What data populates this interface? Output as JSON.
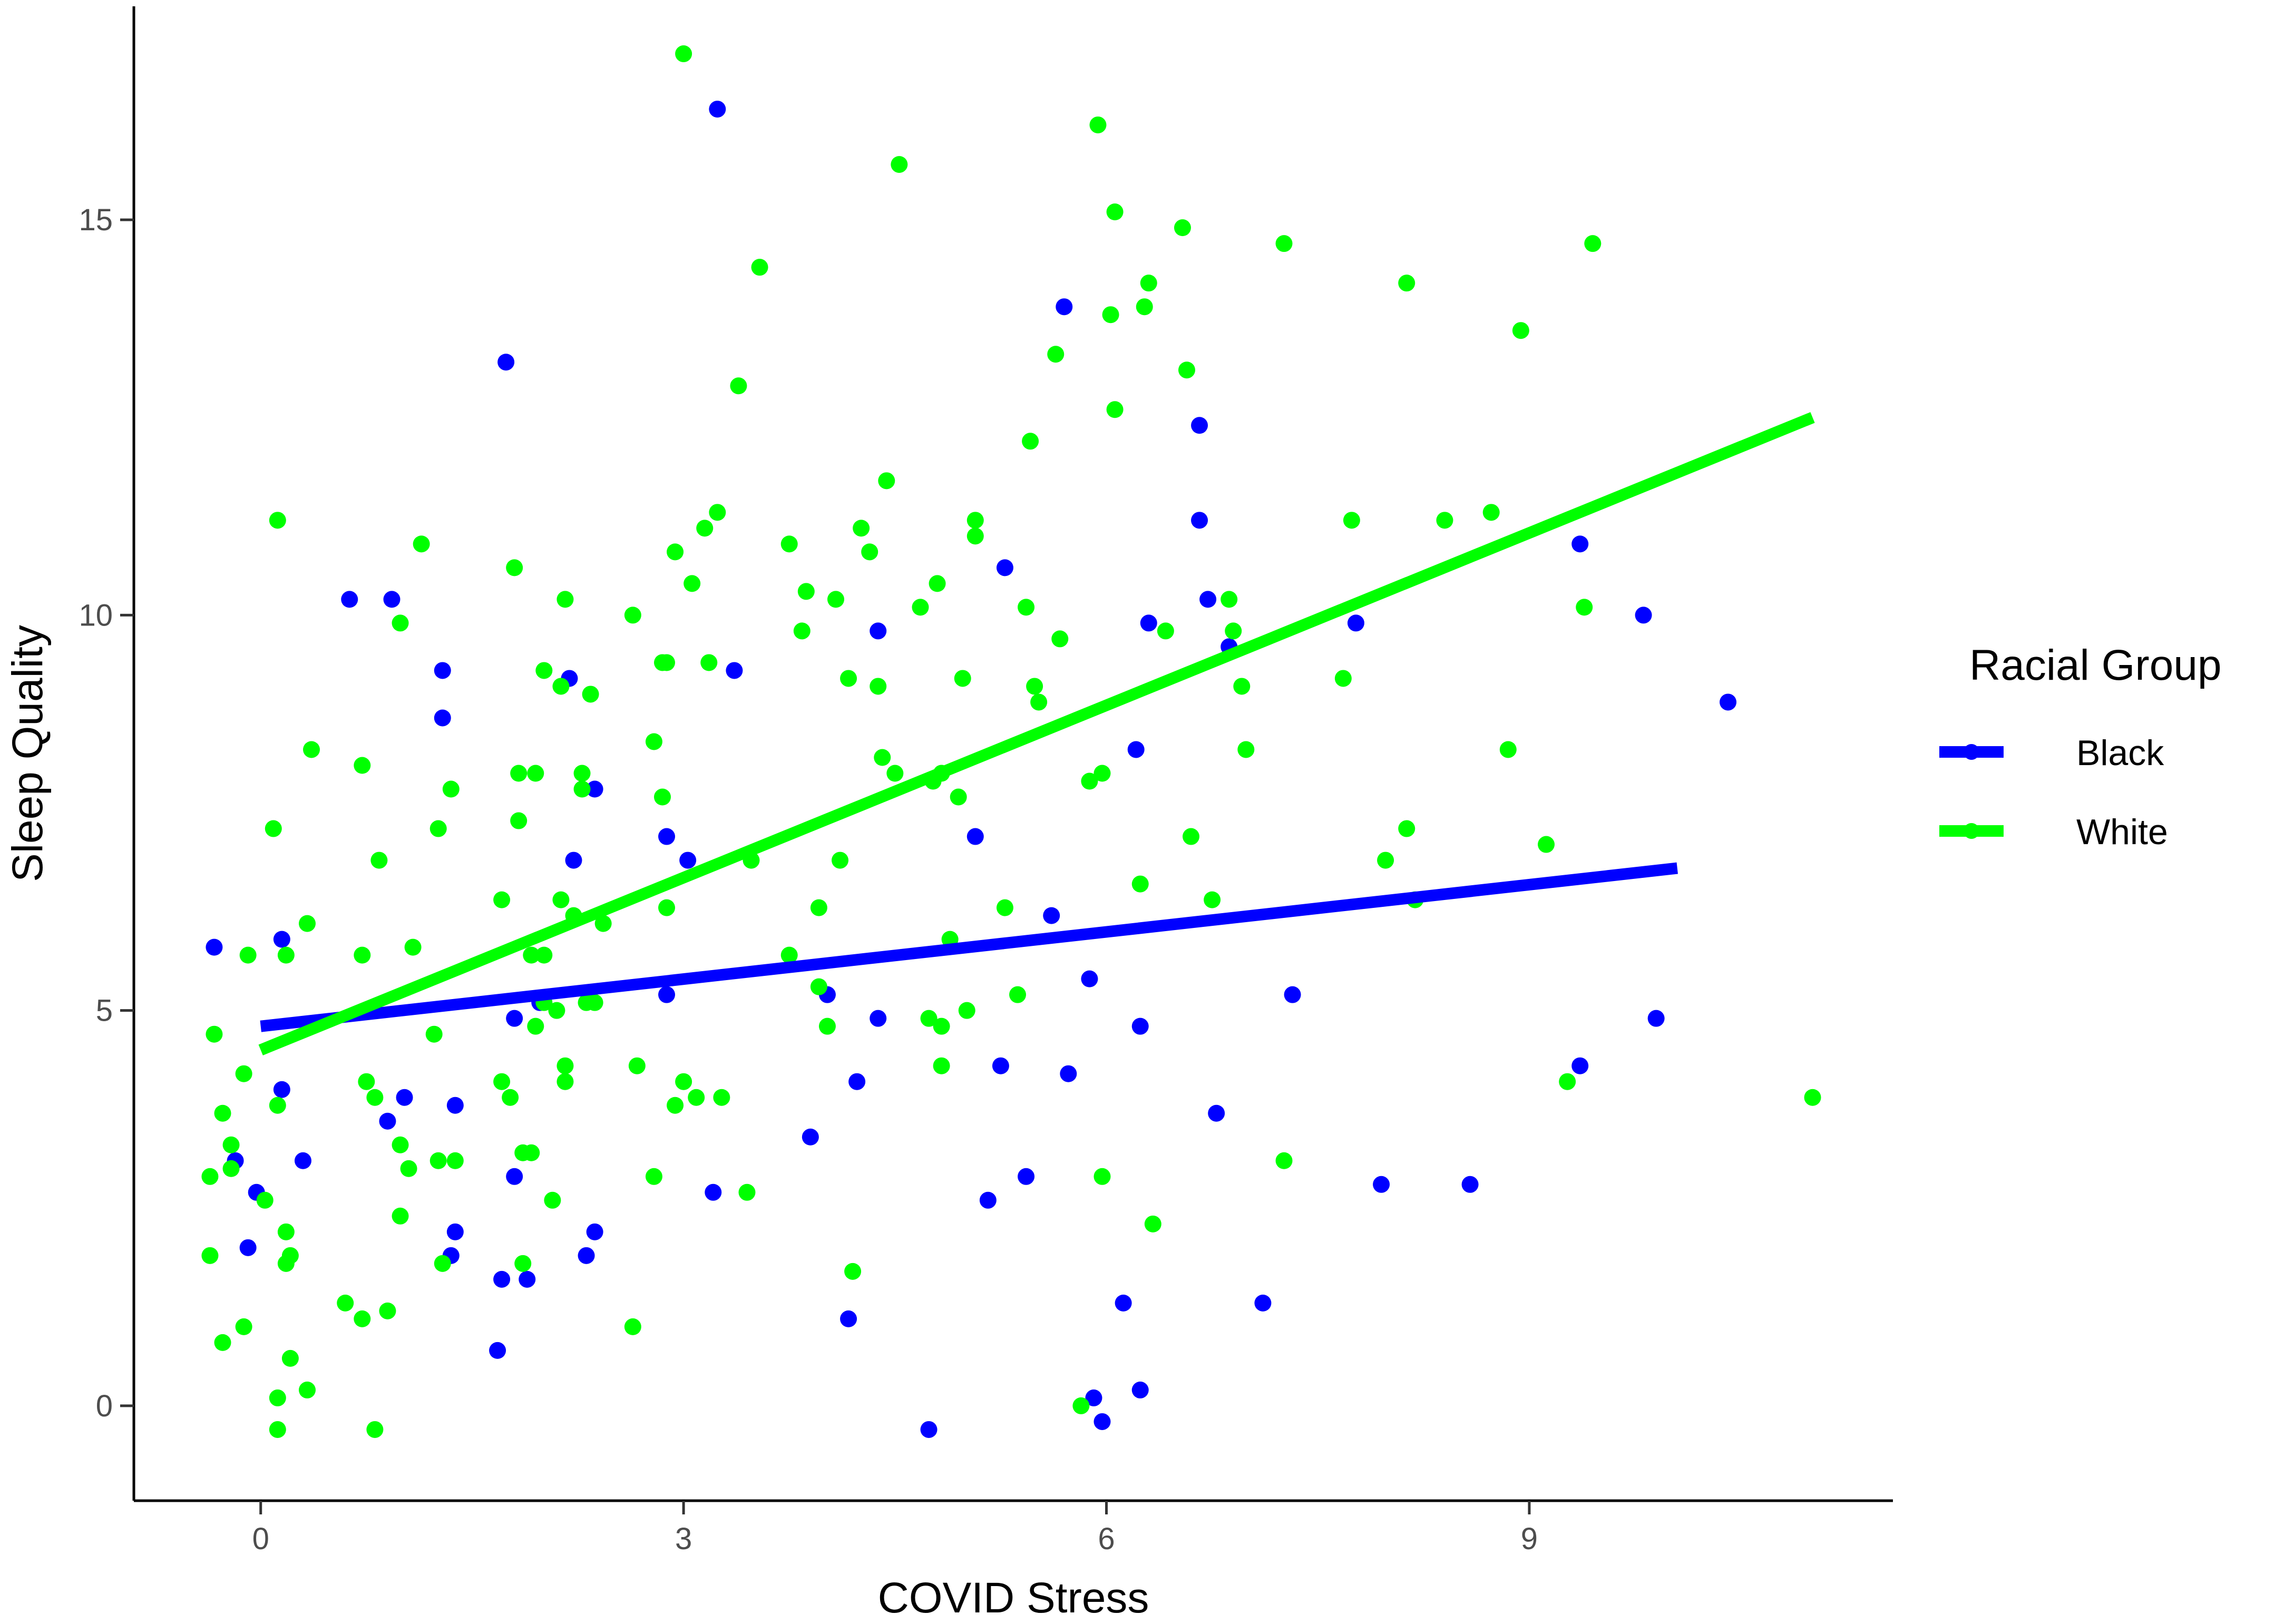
{
  "chart_data": {
    "type": "scatter",
    "xlabel": "COVID Stress",
    "ylabel": "Sleep Quality",
    "xlim": [
      -3,
      38.6
    ],
    "ylim": [
      -1.2,
      17.7
    ],
    "x_ticks": [
      0,
      10,
      20,
      30
    ],
    "x_tick_labels": [
      "0",
      "3",
      "6",
      "9"
    ],
    "y_ticks": [
      0,
      5,
      10,
      15
    ],
    "y_tick_labels": [
      "0",
      "5",
      "10",
      "15"
    ],
    "grid": false,
    "legend": {
      "title": "Racial Group",
      "placement": "right",
      "entries": [
        {
          "label": "Black",
          "color": "#0000ff"
        },
        {
          "label": "White",
          "color": "#00ff00"
        }
      ]
    },
    "series": [
      {
        "name": "Black",
        "color": "#0000ff",
        "fit_line": {
          "x": [
            0,
            33.5
          ],
          "y": [
            4.8,
            6.8
          ]
        },
        "points": [
          [
            -1.1,
            5.8
          ],
          [
            -0.6,
            3.1
          ],
          [
            -0.3,
            2.0
          ],
          [
            -0.1,
            2.7
          ],
          [
            0.5,
            5.9
          ],
          [
            0.5,
            4.0
          ],
          [
            1.0,
            3.1
          ],
          [
            2.1,
            10.2
          ],
          [
            3.1,
            10.2
          ],
          [
            3.0,
            3.6
          ],
          [
            3.4,
            3.9
          ],
          [
            4.3,
            9.3
          ],
          [
            4.3,
            8.7
          ],
          [
            4.5,
            1.9
          ],
          [
            4.6,
            3.8
          ],
          [
            4.6,
            2.2
          ],
          [
            5.8,
            13.2
          ],
          [
            5.7,
            1.6
          ],
          [
            5.6,
            0.7
          ],
          [
            6.0,
            2.9
          ],
          [
            6.0,
            4.9
          ],
          [
            6.3,
            1.6
          ],
          [
            6.6,
            5.1
          ],
          [
            7.3,
            9.2
          ],
          [
            7.4,
            6.9
          ],
          [
            7.7,
            1.9
          ],
          [
            7.9,
            7.8
          ],
          [
            7.9,
            2.2
          ],
          [
            9.6,
            7.2
          ],
          [
            9.6,
            5.2
          ],
          [
            10.1,
            6.9
          ],
          [
            10.7,
            2.7
          ],
          [
            10.8,
            16.4
          ],
          [
            11.2,
            9.3
          ],
          [
            13.0,
            3.4
          ],
          [
            13.4,
            5.2
          ],
          [
            14.1,
            4.1
          ],
          [
            13.9,
            1.1
          ],
          [
            14.6,
            9.8
          ],
          [
            14.6,
            4.9
          ],
          [
            15.8,
            -0.3
          ],
          [
            16.9,
            7.2
          ],
          [
            17.6,
            10.6
          ],
          [
            17.5,
            4.3
          ],
          [
            18.1,
            2.9
          ],
          [
            17.2,
            2.6
          ],
          [
            18.7,
            6.2
          ],
          [
            19.0,
            13.9
          ],
          [
            19.1,
            4.2
          ],
          [
            19.6,
            5.4
          ],
          [
            19.7,
            0.1
          ],
          [
            19.9,
            -0.2
          ],
          [
            20.4,
            1.3
          ],
          [
            20.7,
            8.3
          ],
          [
            20.8,
            4.8
          ],
          [
            20.8,
            0.2
          ],
          [
            21.0,
            9.9
          ],
          [
            22.2,
            12.4
          ],
          [
            22.2,
            11.2
          ],
          [
            22.4,
            10.2
          ],
          [
            22.6,
            3.7
          ],
          [
            22.9,
            9.6
          ],
          [
            23.7,
            1.3
          ],
          [
            24.4,
            5.2
          ],
          [
            25.9,
            9.9
          ],
          [
            26.5,
            2.8
          ],
          [
            28.6,
            2.8
          ],
          [
            31.2,
            10.9
          ],
          [
            31.2,
            4.3
          ],
          [
            32.7,
            10.0
          ],
          [
            33.0,
            4.9
          ],
          [
            34.7,
            8.9
          ]
        ]
      },
      {
        "name": "White",
        "color": "#00ff00",
        "fit_line": {
          "x": [
            0,
            36.7
          ],
          "y": [
            4.5,
            12.5
          ]
        },
        "points": [
          [
            -1.2,
            2.9
          ],
          [
            -1.2,
            1.9
          ],
          [
            -1.1,
            4.7
          ],
          [
            -0.9,
            3.7
          ],
          [
            -0.9,
            0.8
          ],
          [
            -0.7,
            3.3
          ],
          [
            -0.7,
            3.0
          ],
          [
            -0.4,
            1.0
          ],
          [
            -0.4,
            4.2
          ],
          [
            -0.3,
            5.7
          ],
          [
            0.1,
            2.6
          ],
          [
            0.3,
            7.3
          ],
          [
            0.4,
            3.8
          ],
          [
            0.4,
            -0.3
          ],
          [
            0.4,
            0.1
          ],
          [
            0.4,
            11.2
          ],
          [
            0.6,
            1.8
          ],
          [
            0.6,
            5.7
          ],
          [
            0.6,
            2.2
          ],
          [
            0.7,
            1.9
          ],
          [
            0.7,
            0.6
          ],
          [
            1.1,
            6.1
          ],
          [
            1.1,
            0.2
          ],
          [
            1.2,
            8.3
          ],
          [
            2.0,
            1.3
          ],
          [
            2.4,
            8.1
          ],
          [
            2.4,
            5.7
          ],
          [
            2.4,
            1.1
          ],
          [
            2.5,
            4.1
          ],
          [
            2.7,
            3.9
          ],
          [
            2.7,
            -0.3
          ],
          [
            2.8,
            6.9
          ],
          [
            3.0,
            1.2
          ],
          [
            3.3,
            9.9
          ],
          [
            3.3,
            2.4
          ],
          [
            3.3,
            3.3
          ],
          [
            3.5,
            3.0
          ],
          [
            3.6,
            5.8
          ],
          [
            3.8,
            10.9
          ],
          [
            4.1,
            4.7
          ],
          [
            4.2,
            7.3
          ],
          [
            4.2,
            3.1
          ],
          [
            4.3,
            1.8
          ],
          [
            4.5,
            7.8
          ],
          [
            4.6,
            3.1
          ],
          [
            5.7,
            6.4
          ],
          [
            5.7,
            4.1
          ],
          [
            5.9,
            3.9
          ],
          [
            6.0,
            10.6
          ],
          [
            6.1,
            7.4
          ],
          [
            6.1,
            8.0
          ],
          [
            6.2,
            3.2
          ],
          [
            6.2,
            1.8
          ],
          [
            6.4,
            5.7
          ],
          [
            6.4,
            3.2
          ],
          [
            6.5,
            8.0
          ],
          [
            6.5,
            4.8
          ],
          [
            6.7,
            5.7
          ],
          [
            6.7,
            9.3
          ],
          [
            6.7,
            5.1
          ],
          [
            6.9,
            2.6
          ],
          [
            7.0,
            5.0
          ],
          [
            7.1,
            9.1
          ],
          [
            7.1,
            6.4
          ],
          [
            7.2,
            10.2
          ],
          [
            7.2,
            4.3
          ],
          [
            7.2,
            4.1
          ],
          [
            7.4,
            6.2
          ],
          [
            7.6,
            8.0
          ],
          [
            7.6,
            7.8
          ],
          [
            7.7,
            5.1
          ],
          [
            7.8,
            9.0
          ],
          [
            7.9,
            5.1
          ],
          [
            8.1,
            6.1
          ],
          [
            8.8,
            10.0
          ],
          [
            8.8,
            1.0
          ],
          [
            8.9,
            4.3
          ],
          [
            9.3,
            8.4
          ],
          [
            9.3,
            2.9
          ],
          [
            9.5,
            7.7
          ],
          [
            9.5,
            9.4
          ],
          [
            9.6,
            6.3
          ],
          [
            9.6,
            9.4
          ],
          [
            9.8,
            3.8
          ],
          [
            9.8,
            10.8
          ],
          [
            10.0,
            17.1
          ],
          [
            10.0,
            4.1
          ],
          [
            10.2,
            10.4
          ],
          [
            10.3,
            3.9
          ],
          [
            10.5,
            11.1
          ],
          [
            10.6,
            9.4
          ],
          [
            10.8,
            11.3
          ],
          [
            10.9,
            3.9
          ],
          [
            11.3,
            12.9
          ],
          [
            11.5,
            2.7
          ],
          [
            11.6,
            6.9
          ],
          [
            11.8,
            14.4
          ],
          [
            12.5,
            10.9
          ],
          [
            12.5,
            5.7
          ],
          [
            12.8,
            9.8
          ],
          [
            12.9,
            10.3
          ],
          [
            13.2,
            6.3
          ],
          [
            13.2,
            5.3
          ],
          [
            13.4,
            4.8
          ],
          [
            13.7,
            6.9
          ],
          [
            13.6,
            10.2
          ],
          [
            13.9,
            9.2
          ],
          [
            14.0,
            1.7
          ],
          [
            14.2,
            11.1
          ],
          [
            14.4,
            10.8
          ],
          [
            14.6,
            9.1
          ],
          [
            14.7,
            8.2
          ],
          [
            14.8,
            11.7
          ],
          [
            15.0,
            8.0
          ],
          [
            15.1,
            15.7
          ],
          [
            15.6,
            10.1
          ],
          [
            15.8,
            4.9
          ],
          [
            15.9,
            7.9
          ],
          [
            16.0,
            10.4
          ],
          [
            16.1,
            4.8
          ],
          [
            16.1,
            8.0
          ],
          [
            16.1,
            4.3
          ],
          [
            16.3,
            5.9
          ],
          [
            16.5,
            7.7
          ],
          [
            16.6,
            9.2
          ],
          [
            16.7,
            5.0
          ],
          [
            16.9,
            11.2
          ],
          [
            16.9,
            11.0
          ],
          [
            17.6,
            6.3
          ],
          [
            17.9,
            5.2
          ],
          [
            18.1,
            10.1
          ],
          [
            18.2,
            12.2
          ],
          [
            18.3,
            9.1
          ],
          [
            18.4,
            8.9
          ],
          [
            18.8,
            13.3
          ],
          [
            18.9,
            9.7
          ],
          [
            19.4,
            0.0
          ],
          [
            19.6,
            7.9
          ],
          [
            19.8,
            16.2
          ],
          [
            19.9,
            8.0
          ],
          [
            19.9,
            2.9
          ],
          [
            20.1,
            13.8
          ],
          [
            20.2,
            15.1
          ],
          [
            20.2,
            12.6
          ],
          [
            20.8,
            6.6
          ],
          [
            20.9,
            13.9
          ],
          [
            21.0,
            14.2
          ],
          [
            21.1,
            2.3
          ],
          [
            21.4,
            9.8
          ],
          [
            21.8,
            14.9
          ],
          [
            21.9,
            13.1
          ],
          [
            22.0,
            7.2
          ],
          [
            22.5,
            6.4
          ],
          [
            22.9,
            10.2
          ],
          [
            23.0,
            9.8
          ],
          [
            23.2,
            9.1
          ],
          [
            23.3,
            8.3
          ],
          [
            24.2,
            14.7
          ],
          [
            24.2,
            3.1
          ],
          [
            25.6,
            9.2
          ],
          [
            25.8,
            11.2
          ],
          [
            26.6,
            6.9
          ],
          [
            27.1,
            7.3
          ],
          [
            27.1,
            14.2
          ],
          [
            27.3,
            6.4
          ],
          [
            28.0,
            11.2
          ],
          [
            29.1,
            11.3
          ],
          [
            29.5,
            8.3
          ],
          [
            29.8,
            13.6
          ],
          [
            30.4,
            7.1
          ],
          [
            30.9,
            4.1
          ],
          [
            31.3,
            10.1
          ],
          [
            31.5,
            14.7
          ],
          [
            36.7,
            3.9
          ]
        ]
      }
    ]
  }
}
